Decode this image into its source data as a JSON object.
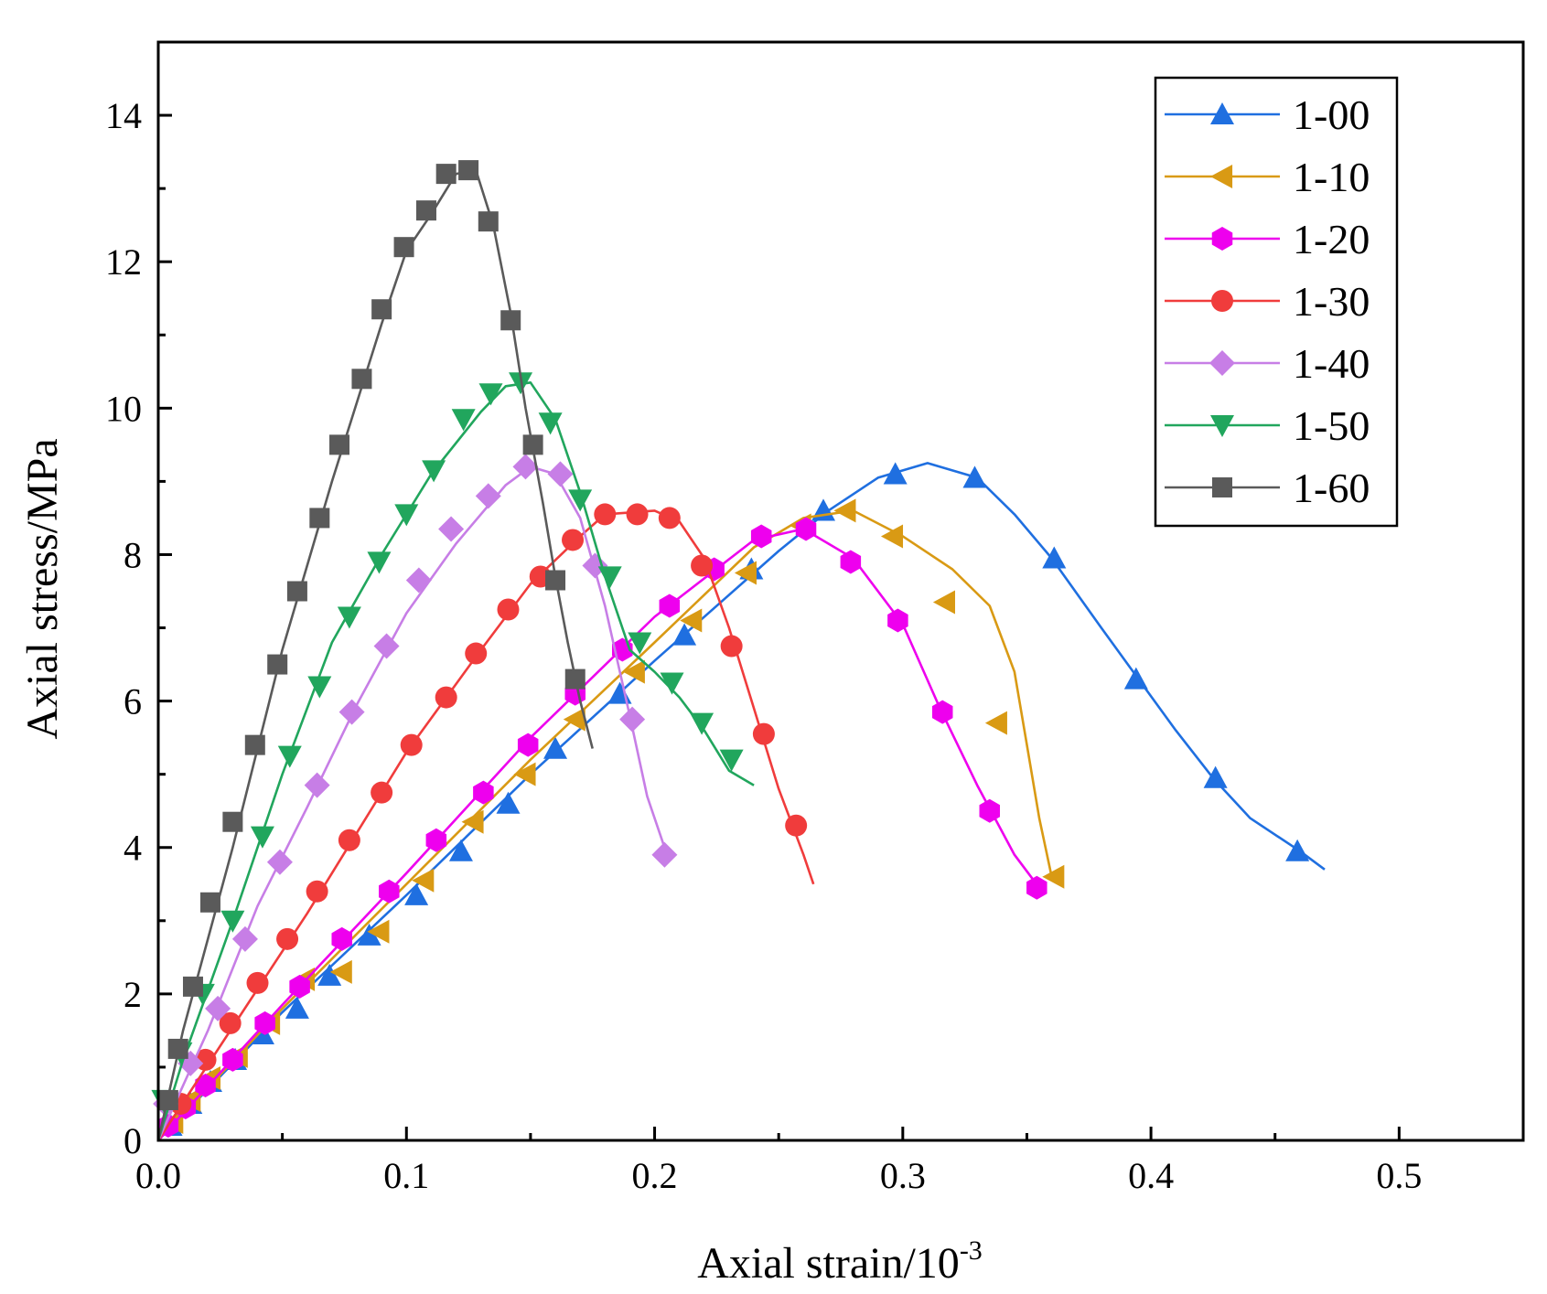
{
  "chart_data": {
    "type": "line",
    "title": "",
    "xlabel_base": "Axial strain/10",
    "xlabel_exp": "-3",
    "ylabel": "Axial stress/MPa",
    "xlim": [
      0.0,
      0.55
    ],
    "ylim": [
      0,
      15
    ],
    "x_ticks": [
      0.0,
      0.1,
      0.2,
      0.3,
      0.4,
      0.5
    ],
    "x_tick_labels": [
      "0.0",
      "0.1",
      "0.2",
      "0.3",
      "0.4",
      "0.5"
    ],
    "y_ticks": [
      0,
      2,
      4,
      6,
      8,
      10,
      12,
      14
    ],
    "y_tick_labels": [
      "0",
      "2",
      "4",
      "6",
      "8",
      "10",
      "12",
      "14"
    ],
    "grid": false,
    "legend_position": "top-right",
    "series": [
      {
        "name": "1-00",
        "color": "#1f6fe0",
        "marker": "triangle-up",
        "line": [
          [
            0.0,
            0.0
          ],
          [
            0.05,
            1.75
          ],
          [
            0.1,
            3.35
          ],
          [
            0.15,
            5.0
          ],
          [
            0.2,
            6.55
          ],
          [
            0.25,
            8.05
          ],
          [
            0.27,
            8.6
          ],
          [
            0.29,
            9.05
          ],
          [
            0.31,
            9.25
          ],
          [
            0.33,
            9.05
          ],
          [
            0.345,
            8.55
          ],
          [
            0.36,
            7.95
          ],
          [
            0.38,
            7.0
          ],
          [
            0.395,
            6.3
          ],
          [
            0.41,
            5.6
          ],
          [
            0.425,
            4.95
          ],
          [
            0.44,
            4.4
          ],
          [
            0.46,
            3.95
          ],
          [
            0.47,
            3.7
          ]
        ],
        "markers": [
          [
            0.005,
            0.2
          ],
          [
            0.013,
            0.5
          ],
          [
            0.021,
            0.8
          ],
          [
            0.031,
            1.1
          ],
          [
            0.042,
            1.45
          ],
          [
            0.056,
            1.8
          ],
          [
            0.069,
            2.25
          ],
          [
            0.085,
            2.8
          ],
          [
            0.104,
            3.35
          ],
          [
            0.122,
            3.95
          ],
          [
            0.141,
            4.6
          ],
          [
            0.16,
            5.35
          ],
          [
            0.186,
            6.1
          ],
          [
            0.212,
            6.9
          ],
          [
            0.239,
            7.8
          ],
          [
            0.268,
            8.6
          ],
          [
            0.297,
            9.1
          ],
          [
            0.329,
            9.05
          ],
          [
            0.361,
            7.95
          ],
          [
            0.394,
            6.3
          ],
          [
            0.426,
            4.95
          ],
          [
            0.459,
            3.95
          ]
        ]
      },
      {
        "name": "1-10",
        "color": "#d99a14",
        "marker": "triangle-left",
        "line": [
          [
            0.0,
            0.0
          ],
          [
            0.05,
            1.8
          ],
          [
            0.1,
            3.5
          ],
          [
            0.15,
            5.2
          ],
          [
            0.2,
            6.8
          ],
          [
            0.24,
            8.1
          ],
          [
            0.26,
            8.5
          ],
          [
            0.28,
            8.6
          ],
          [
            0.3,
            8.25
          ],
          [
            0.32,
            7.8
          ],
          [
            0.335,
            7.3
          ],
          [
            0.345,
            6.4
          ],
          [
            0.35,
            5.4
          ],
          [
            0.355,
            4.4
          ],
          [
            0.36,
            3.6
          ]
        ],
        "markers": [
          [
            0.006,
            0.25
          ],
          [
            0.013,
            0.55
          ],
          [
            0.021,
            0.85
          ],
          [
            0.032,
            1.15
          ],
          [
            0.045,
            1.6
          ],
          [
            0.059,
            2.2
          ],
          [
            0.074,
            2.3
          ],
          [
            0.089,
            2.85
          ],
          [
            0.107,
            3.55
          ],
          [
            0.127,
            4.35
          ],
          [
            0.148,
            5.0
          ],
          [
            0.168,
            5.75
          ],
          [
            0.192,
            6.4
          ],
          [
            0.215,
            7.1
          ],
          [
            0.237,
            7.75
          ],
          [
            0.259,
            8.4
          ],
          [
            0.277,
            8.6
          ],
          [
            0.296,
            8.25
          ],
          [
            0.317,
            7.35
          ],
          [
            0.338,
            5.7
          ],
          [
            0.361,
            3.6
          ]
        ]
      },
      {
        "name": "1-20",
        "color": "#ee00ee",
        "marker": "hexagon",
        "line": [
          [
            0.0,
            0.0
          ],
          [
            0.05,
            1.85
          ],
          [
            0.1,
            3.65
          ],
          [
            0.15,
            5.5
          ],
          [
            0.2,
            7.15
          ],
          [
            0.24,
            8.2
          ],
          [
            0.26,
            8.35
          ],
          [
            0.28,
            7.95
          ],
          [
            0.3,
            7.05
          ],
          [
            0.315,
            5.9
          ],
          [
            0.33,
            4.85
          ],
          [
            0.345,
            3.9
          ],
          [
            0.355,
            3.45
          ]
        ],
        "markers": [
          [
            0.004,
            0.2
          ],
          [
            0.011,
            0.45
          ],
          [
            0.019,
            0.75
          ],
          [
            0.03,
            1.1
          ],
          [
            0.043,
            1.6
          ],
          [
            0.057,
            2.1
          ],
          [
            0.074,
            2.75
          ],
          [
            0.093,
            3.4
          ],
          [
            0.112,
            4.1
          ],
          [
            0.131,
            4.75
          ],
          [
            0.149,
            5.4
          ],
          [
            0.168,
            6.1
          ],
          [
            0.187,
            6.7
          ],
          [
            0.206,
            7.3
          ],
          [
            0.224,
            7.8
          ],
          [
            0.243,
            8.25
          ],
          [
            0.261,
            8.35
          ],
          [
            0.279,
            7.9
          ],
          [
            0.298,
            7.1
          ],
          [
            0.316,
            5.85
          ],
          [
            0.335,
            4.5
          ],
          [
            0.354,
            3.45
          ]
        ]
      },
      {
        "name": "1-30",
        "color": "#f03c3c",
        "marker": "circle",
        "line": [
          [
            0.0,
            0.0
          ],
          [
            0.03,
            1.55
          ],
          [
            0.06,
            3.1
          ],
          [
            0.1,
            5.3
          ],
          [
            0.13,
            6.7
          ],
          [
            0.15,
            7.6
          ],
          [
            0.17,
            8.25
          ],
          [
            0.18,
            8.55
          ],
          [
            0.2,
            8.6
          ],
          [
            0.21,
            8.45
          ],
          [
            0.22,
            7.95
          ],
          [
            0.23,
            7.0
          ],
          [
            0.24,
            5.9
          ],
          [
            0.25,
            4.8
          ],
          [
            0.26,
            3.9
          ],
          [
            0.264,
            3.5
          ]
        ],
        "markers": [
          [
            0.009,
            0.5
          ],
          [
            0.019,
            1.1
          ],
          [
            0.029,
            1.6
          ],
          [
            0.04,
            2.15
          ],
          [
            0.052,
            2.75
          ],
          [
            0.064,
            3.4
          ],
          [
            0.077,
            4.1
          ],
          [
            0.09,
            4.75
          ],
          [
            0.102,
            5.4
          ],
          [
            0.116,
            6.05
          ],
          [
            0.128,
            6.65
          ],
          [
            0.141,
            7.25
          ],
          [
            0.154,
            7.7
          ],
          [
            0.167,
            8.2
          ],
          [
            0.18,
            8.55
          ],
          [
            0.193,
            8.55
          ],
          [
            0.206,
            8.5
          ],
          [
            0.219,
            7.85
          ],
          [
            0.231,
            6.75
          ],
          [
            0.244,
            5.55
          ],
          [
            0.257,
            4.3
          ]
        ]
      },
      {
        "name": "1-40",
        "color": "#c77ee6",
        "marker": "diamond",
        "line": [
          [
            0.0,
            0.0
          ],
          [
            0.02,
            1.5
          ],
          [
            0.04,
            3.2
          ],
          [
            0.06,
            4.55
          ],
          [
            0.08,
            5.95
          ],
          [
            0.1,
            7.2
          ],
          [
            0.12,
            8.15
          ],
          [
            0.14,
            8.95
          ],
          [
            0.15,
            9.2
          ],
          [
            0.16,
            9.1
          ],
          [
            0.17,
            8.5
          ],
          [
            0.18,
            7.3
          ],
          [
            0.19,
            5.8
          ],
          [
            0.197,
            4.7
          ],
          [
            0.205,
            3.9
          ]
        ],
        "markers": [
          [
            0.003,
            0.5
          ],
          [
            0.013,
            1.05
          ],
          [
            0.024,
            1.8
          ],
          [
            0.035,
            2.75
          ],
          [
            0.049,
            3.8
          ],
          [
            0.064,
            4.85
          ],
          [
            0.078,
            5.85
          ],
          [
            0.092,
            6.75
          ],
          [
            0.105,
            7.65
          ],
          [
            0.118,
            8.35
          ],
          [
            0.133,
            8.8
          ],
          [
            0.148,
            9.2
          ],
          [
            0.162,
            9.1
          ],
          [
            0.176,
            7.85
          ],
          [
            0.191,
            5.75
          ],
          [
            0.204,
            3.9
          ]
        ]
      },
      {
        "name": "1-50",
        "color": "#21a65d",
        "marker": "triangle-down",
        "line": [
          [
            0.0,
            0.0
          ],
          [
            0.01,
            1.1
          ],
          [
            0.03,
            3.0
          ],
          [
            0.05,
            5.0
          ],
          [
            0.07,
            6.8
          ],
          [
            0.09,
            8.0
          ],
          [
            0.11,
            9.1
          ],
          [
            0.13,
            9.95
          ],
          [
            0.14,
            10.3
          ],
          [
            0.15,
            10.35
          ],
          [
            0.16,
            9.85
          ],
          [
            0.17,
            8.85
          ],
          [
            0.18,
            7.7
          ],
          [
            0.19,
            6.7
          ],
          [
            0.2,
            6.4
          ],
          [
            0.21,
            6.05
          ],
          [
            0.22,
            5.6
          ],
          [
            0.23,
            5.05
          ],
          [
            0.24,
            4.85
          ]
        ],
        "markers": [
          [
            0.002,
            0.55
          ],
          [
            0.009,
            1.2
          ],
          [
            0.018,
            2.0
          ],
          [
            0.03,
            3.0
          ],
          [
            0.042,
            4.15
          ],
          [
            0.053,
            5.25
          ],
          [
            0.065,
            6.2
          ],
          [
            0.077,
            7.15
          ],
          [
            0.089,
            7.9
          ],
          [
            0.1,
            8.55
          ],
          [
            0.111,
            9.15
          ],
          [
            0.123,
            9.85
          ],
          [
            0.134,
            10.2
          ],
          [
            0.146,
            10.35
          ],
          [
            0.158,
            9.8
          ],
          [
            0.17,
            8.75
          ],
          [
            0.182,
            7.7
          ],
          [
            0.194,
            6.8
          ],
          [
            0.207,
            6.25
          ],
          [
            0.219,
            5.7
          ],
          [
            0.231,
            5.2
          ]
        ]
      },
      {
        "name": "1-60",
        "color": "#5a5a5a",
        "marker": "square",
        "line": [
          [
            0.0,
            0.0
          ],
          [
            0.01,
            1.5
          ],
          [
            0.03,
            4.0
          ],
          [
            0.05,
            6.7
          ],
          [
            0.07,
            9.0
          ],
          [
            0.09,
            11.15
          ],
          [
            0.1,
            12.15
          ],
          [
            0.11,
            12.65
          ],
          [
            0.12,
            13.2
          ],
          [
            0.128,
            13.25
          ],
          [
            0.135,
            12.5
          ],
          [
            0.142,
            11.3
          ],
          [
            0.148,
            10.0
          ],
          [
            0.155,
            8.7
          ],
          [
            0.16,
            7.7
          ],
          [
            0.165,
            6.8
          ],
          [
            0.17,
            6.0
          ],
          [
            0.175,
            5.35
          ]
        ],
        "markers": [
          [
            0.004,
            0.55
          ],
          [
            0.008,
            1.25
          ],
          [
            0.014,
            2.1
          ],
          [
            0.021,
            3.25
          ],
          [
            0.03,
            4.35
          ],
          [
            0.039,
            5.4
          ],
          [
            0.048,
            6.5
          ],
          [
            0.056,
            7.5
          ],
          [
            0.065,
            8.5
          ],
          [
            0.073,
            9.5
          ],
          [
            0.082,
            10.4
          ],
          [
            0.09,
            11.35
          ],
          [
            0.099,
            12.2
          ],
          [
            0.108,
            12.7
          ],
          [
            0.116,
            13.2
          ],
          [
            0.125,
            13.25
          ],
          [
            0.133,
            12.55
          ],
          [
            0.142,
            11.2
          ],
          [
            0.151,
            9.5
          ],
          [
            0.16,
            7.65
          ],
          [
            0.168,
            6.3
          ]
        ]
      }
    ]
  }
}
